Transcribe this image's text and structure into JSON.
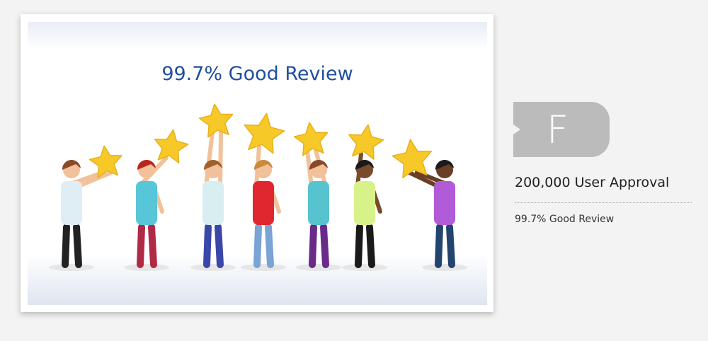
{
  "illustration": {
    "title": "99.7% Good Review",
    "star_color": "#f7c928",
    "title_color": "#1f4f9e",
    "star_count": 7,
    "people_count": 7
  },
  "badge": {
    "letter": "F",
    "color": "#bbbbbb"
  },
  "stats": {
    "approval": "200,000 User Approval",
    "review": "99.7% Good Review"
  }
}
